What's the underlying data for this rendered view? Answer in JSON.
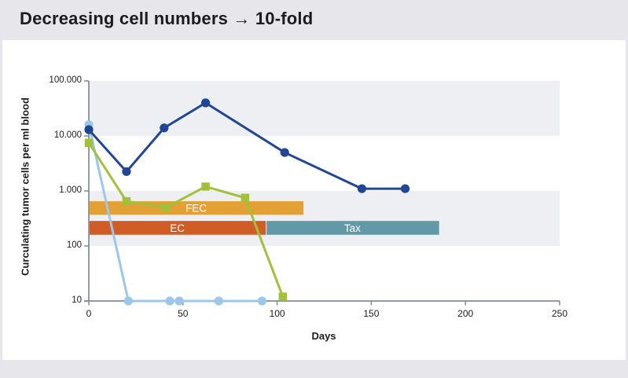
{
  "header": {
    "title": "Decreasing cell numbers → 10-fold"
  },
  "chart_data": {
    "type": "line",
    "title": "Decreasing cell numbers → 10-fold",
    "xlabel": "Days",
    "ylabel": "Curculating tumor cells per ml blood",
    "x_ticks": [
      "0",
      "50",
      "100",
      "150",
      "200",
      "250"
    ],
    "x_tick_days": [
      0,
      50,
      100,
      150,
      200,
      250
    ],
    "xlim": [
      0,
      250
    ],
    "y_scale": "log",
    "ylim": [
      10,
      100000
    ],
    "y_ticks": [
      "100.000",
      "10.000",
      "1.000",
      "100",
      "10"
    ],
    "y_tick_values": [
      100000,
      10000,
      1000,
      100,
      10
    ],
    "grid": "alternating-decade-bands",
    "legend": "none",
    "series": [
      {
        "name": "light-blue-series",
        "color": "#9cc7e8",
        "marker": "circle",
        "points": [
          [
            0,
            16000
          ],
          [
            21,
            10
          ],
          [
            43,
            10
          ],
          [
            48,
            10
          ],
          [
            69,
            10
          ],
          [
            92,
            10
          ]
        ]
      },
      {
        "name": "green-series",
        "color": "#a2c03a",
        "marker": "square",
        "points": [
          [
            0,
            7500
          ],
          [
            20,
            650
          ],
          [
            41,
            500
          ],
          [
            62,
            1200
          ],
          [
            83,
            750
          ],
          [
            103,
            12
          ]
        ]
      },
      {
        "name": "dark-blue-series",
        "color": "#1f4795",
        "marker": "circle",
        "points": [
          [
            0,
            13000
          ],
          [
            20,
            2250
          ],
          [
            40,
            14000
          ],
          [
            62,
            40000
          ],
          [
            104,
            5000
          ],
          [
            145,
            1100
          ],
          [
            168,
            1100
          ]
        ]
      }
    ],
    "treatment_bars": [
      {
        "label": "FEC",
        "color": "#e3a035",
        "day_start": 0,
        "day_end": 114,
        "value_top": 650,
        "value_bottom": 370
      },
      {
        "label": "EC",
        "color": "#cf5d25",
        "day_start": 0,
        "day_end": 94,
        "value_top": 285,
        "value_bottom": 160
      },
      {
        "label": "Tax",
        "color": "#6199a6",
        "day_start": 94,
        "day_end": 186,
        "value_top": 285,
        "value_bottom": 160
      }
    ]
  },
  "colors": {
    "page_bg": "#e7e7eb",
    "card_bg": "#ffffff",
    "band": "#edeff2",
    "axis": "#7f8b99",
    "text": "#1c1c1e",
    "bar_label_text": "#ffffff"
  }
}
